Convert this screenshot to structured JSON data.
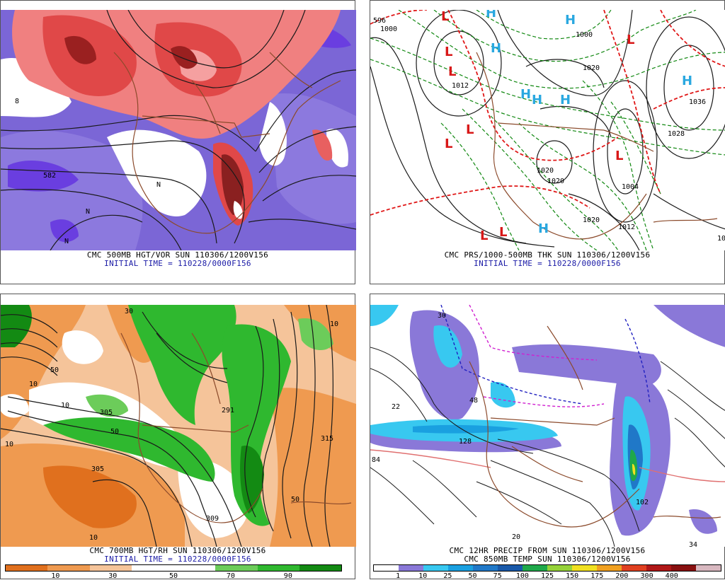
{
  "panels": {
    "p1": {
      "caption_line1": "CMC 500MB HGT/VOR SUN 110306/1200V156",
      "caption_line2": "INITIAL TIME = 110228/0000F156",
      "labels": [
        "582",
        "N",
        "N",
        "N",
        "8"
      ]
    },
    "p2": {
      "caption_line1": "CMC PRS/1000-500MB THK SUN 110306/1200V156",
      "caption_line2": "INITIAL TIME = 110228/0000F156",
      "labels": [
        "1012",
        "1020",
        "1020",
        "1036",
        "1028",
        "1004",
        "1020",
        "1012",
        "1020",
        "1000",
        "1000",
        "596",
        "10"
      ],
      "high_letter": "H",
      "low_letter": "L"
    },
    "p3": {
      "caption_line1": "CMC 700MB HGT/RH SUN 110306/1200V156",
      "caption_line2": "INITIAL TIME = 110228/0000F156",
      "labels": [
        "10",
        "10",
        "10",
        "10",
        "50",
        "50",
        "50",
        "30",
        "305",
        "291",
        "315",
        "309",
        "10",
        "305"
      ],
      "scale": {
        "colors": [
          "#e0701e",
          "#ef9a50",
          "#f5c49a",
          "#ffffff",
          "#ffffff",
          "#6ccc5a",
          "#2fb82f",
          "#138a13"
        ],
        "tick_labels": [
          "10",
          "30",
          "50",
          "70",
          "90"
        ]
      }
    },
    "p4": {
      "caption_line1": "CMC 12HR PRECIP FROM SUN 110306/1200V156",
      "caption_line2": "CMC 850MB TEMP SUN 110306/1200V156",
      "labels": [
        "22",
        "48",
        "128",
        "102",
        "84",
        "34",
        "20",
        "30"
      ],
      "scale": {
        "colors": [
          "#ffffff",
          "#8a78d8",
          "#38c8f0",
          "#1aa0e0",
          "#2078c8",
          "#1858a8",
          "#1fa84a",
          "#96d23a",
          "#f0e020",
          "#f0a020",
          "#e04020",
          "#b01818",
          "#881010",
          "#d8b8c0"
        ],
        "tick_labels": [
          "1",
          "10",
          "25",
          "50",
          "75",
          "100",
          "125",
          "150",
          "175",
          "200",
          "300",
          "400"
        ]
      }
    }
  }
}
